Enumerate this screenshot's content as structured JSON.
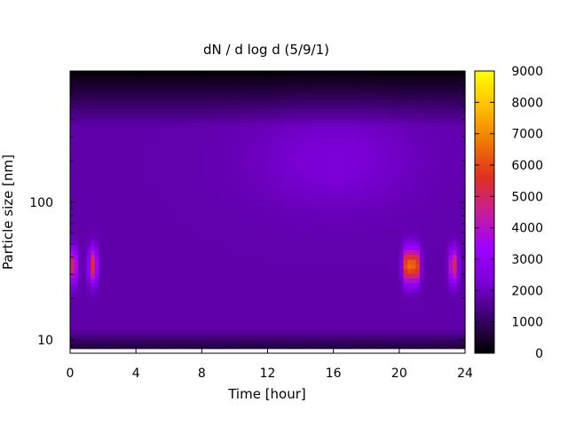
{
  "chart_data": {
    "type": "heatmap",
    "title": "dN / d log d (5/9/1)",
    "xlabel": "Time [hour]",
    "ylabel": "Particle size [nm]",
    "xlim": [
      0,
      24
    ],
    "ylim": [
      8,
      900
    ],
    "yscale": "log",
    "x_ticks": [
      "0",
      "4",
      "8",
      "12",
      "16",
      "20",
      "24"
    ],
    "y_ticks": [
      "10",
      "100"
    ],
    "colorbar": {
      "min": 0,
      "max": 9000,
      "ticks": [
        "0",
        "1000",
        "2000",
        "3000",
        "4000",
        "5000",
        "6000",
        "7000",
        "8000",
        "9000"
      ],
      "palette": [
        "#000000",
        "#3a006b",
        "#7a00d6",
        "#a000ff",
        "#c81e9a",
        "#e0301e",
        "#f07a00",
        "#ffc000",
        "#ffff00"
      ]
    },
    "background_level": 1800,
    "peak_size_nm": 35,
    "bursts": [
      {
        "time_hour": 0.2,
        "peak_value": 5200
      },
      {
        "time_hour": 1.4,
        "peak_value": 5600
      },
      {
        "time_hour": 20.5,
        "peak_value": 7200
      },
      {
        "time_hour": 21.0,
        "peak_value": 7000
      },
      {
        "time_hour": 23.3,
        "peak_value": 5500
      }
    ]
  }
}
